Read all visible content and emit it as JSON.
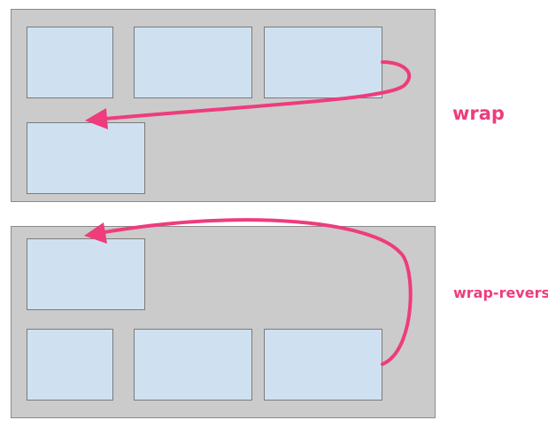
{
  "accent_color": "#ee3c7d",
  "panel_color": "#cbcbcb",
  "item_color": "#cfe1f1",
  "diagrams": [
    {
      "label": "wrap",
      "item_count": 4
    },
    {
      "label": "wrap-reverse",
      "item_count": 4
    }
  ]
}
